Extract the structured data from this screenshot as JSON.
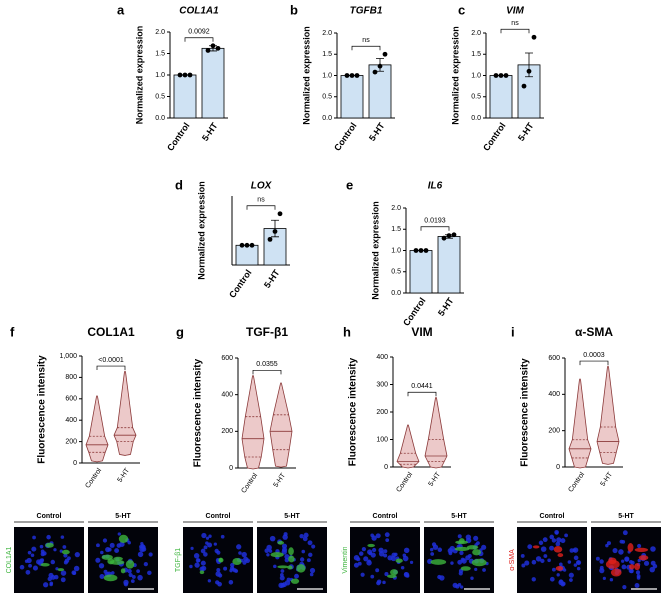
{
  "chart_data": [
    {
      "type": "bar",
      "panel": "a",
      "title": "COL1A1",
      "ylabel": "Normalized expression",
      "categories": [
        "Control",
        "5-HT"
      ],
      "values": [
        1.0,
        1.62
      ],
      "errors": [
        0,
        0.06
      ],
      "points": [
        [
          1,
          1,
          1
        ],
        [
          1.57,
          1.68,
          1.62
        ]
      ],
      "annotation": "0.0092",
      "ylim": [
        0,
        2
      ],
      "yticks": [
        {
          "value": 0,
          "label": "0.0"
        },
        0.5,
        {
          "value": 1,
          "label": "1.0"
        },
        1.5,
        {
          "value": 2,
          "label": "2.0"
        }
      ],
      "color": "#cfe2f3"
    },
    {
      "type": "bar",
      "panel": "b",
      "title": "TGFB1",
      "ylabel": "Normalized expression",
      "categories": [
        "Control",
        "5-HT"
      ],
      "values": [
        1.0,
        1.25
      ],
      "errors": [
        0,
        0.15
      ],
      "points": [
        [
          1,
          1,
          1
        ],
        [
          1.08,
          1.22,
          1.5
        ]
      ],
      "annotation": "ns",
      "ylim": [
        0,
        2
      ],
      "yticks": [
        {
          "value": 0,
          "label": "0.0"
        },
        0.5,
        {
          "value": 1,
          "label": "1.0"
        },
        1.5,
        {
          "value": 2,
          "label": "2.0"
        }
      ],
      "color": "#cfe2f3"
    },
    {
      "type": "bar",
      "panel": "c",
      "title": "VIM",
      "ylabel": "Normalized expression",
      "categories": [
        "Control",
        "5-HT"
      ],
      "values": [
        1.0,
        1.25
      ],
      "errors": [
        0,
        0.28
      ],
      "points": [
        [
          1,
          1,
          1
        ],
        [
          0.75,
          1.1,
          1.9
        ]
      ],
      "annotation": "ns",
      "ylim": [
        0,
        2
      ],
      "yticks": [
        {
          "value": 0,
          "label": "0.0"
        },
        0.5,
        {
          "value": 1,
          "label": "1.0"
        },
        1.5,
        {
          "value": 2,
          "label": "2.0"
        }
      ],
      "color": "#cfe2f3"
    },
    {
      "type": "bar",
      "panel": "d",
      "title": "LOX",
      "ylabel": "Normalized expression",
      "categories": [
        "Control",
        "5-HT"
      ],
      "values": [
        1.0,
        1.85
      ],
      "errors": [
        0,
        0.42
      ],
      "points": [
        [
          1,
          1,
          1
        ],
        [
          1.3,
          1.7,
          2.6
        ]
      ],
      "annotation": "ns",
      "ylim": [
        0,
        3.5
      ],
      "color": "#cfe2f3"
    },
    {
      "type": "bar",
      "panel": "e",
      "title": "IL6",
      "ylabel": "Normalized expression",
      "categories": [
        "Control",
        "5-HT"
      ],
      "values": [
        1.0,
        1.33
      ],
      "errors": [
        0,
        0.04
      ],
      "points": [
        [
          1,
          1,
          1
        ],
        [
          1.29,
          1.35,
          1.37
        ]
      ],
      "annotation": "0.0193",
      "ylim": [
        0,
        2
      ],
      "yticks": [
        {
          "value": 0,
          "label": "0.0"
        },
        0.5,
        {
          "value": 1,
          "label": "1.0"
        },
        1.5,
        {
          "value": 2,
          "label": "2.0"
        }
      ],
      "color": "#cfe2f3"
    },
    {
      "type": "violin",
      "panel": "f",
      "title": "COL1A1",
      "ylabel": "Fluorescence intensity",
      "categories": [
        "Control",
        "5-HT"
      ],
      "stats": [
        {
          "min": 20,
          "q1": 100,
          "median": 170,
          "q3": 250,
          "max": 620
        },
        {
          "min": 80,
          "q1": 200,
          "median": 260,
          "q3": 330,
          "max": 850
        }
      ],
      "annotation": "<0.0001",
      "ylim": [
        0,
        1000
      ],
      "yticks": [
        0,
        200,
        400,
        600,
        800,
        {
          "value": 1000,
          "label": "1,000"
        }
      ],
      "color": "#ecc9c9"
    },
    {
      "type": "violin",
      "panel": "g",
      "title": "TGF-β1",
      "ylabel": "Fluorescence intensity",
      "categories": [
        "Control",
        "5-HT"
      ],
      "stats": [
        {
          "min": 0,
          "q1": 60,
          "median": 160,
          "q3": 280,
          "max": 500
        },
        {
          "min": 10,
          "q1": 100,
          "median": 200,
          "q3": 290,
          "max": 460
        }
      ],
      "annotation": "0.0355",
      "ylim": [
        0,
        600
      ],
      "yticks": [
        0,
        200,
        400,
        600
      ],
      "color": "#ecc9c9"
    },
    {
      "type": "violin",
      "panel": "h",
      "title": "VIM",
      "ylabel": "Fluorescence intensity",
      "categories": [
        "Control",
        "5-HT"
      ],
      "stats": [
        {
          "min": 0,
          "q1": 10,
          "median": 20,
          "q3": 50,
          "max": 150
        },
        {
          "min": 0,
          "q1": 20,
          "median": 40,
          "q3": 100,
          "max": 250
        }
      ],
      "annotation": "0.0441",
      "ylim": [
        0,
        400
      ],
      "yticks": [
        0,
        100,
        200,
        300,
        400
      ],
      "color": "#ecc9c9"
    },
    {
      "type": "violin",
      "panel": "i",
      "title": "α-SMA",
      "ylabel": "Fluorescence intensity",
      "categories": [
        "Control",
        "5-HT"
      ],
      "stats": [
        {
          "min": 0,
          "q1": 50,
          "median": 100,
          "q3": 150,
          "max": 480
        },
        {
          "min": 20,
          "q1": 80,
          "median": 140,
          "q3": 220,
          "max": 550
        }
      ],
      "annotation": "0.0003",
      "ylim": [
        0,
        600
      ],
      "yticks": [
        0,
        200,
        400,
        600
      ],
      "color": "#ecc9c9"
    }
  ],
  "micrographs": [
    {
      "label": "COL1A1",
      "color": "#3cb43c",
      "columns": [
        "Control",
        "5-HT"
      ]
    },
    {
      "label": "TGF-β1",
      "color": "#3cb43c",
      "columns": [
        "Control",
        "5-HT"
      ]
    },
    {
      "label": "Vimentin",
      "color": "#3cb43c",
      "columns": [
        "Control",
        "5-HT"
      ]
    },
    {
      "label": "α-SMA",
      "color": "#e0201b",
      "columns": [
        "Control",
        "5-HT"
      ]
    }
  ]
}
